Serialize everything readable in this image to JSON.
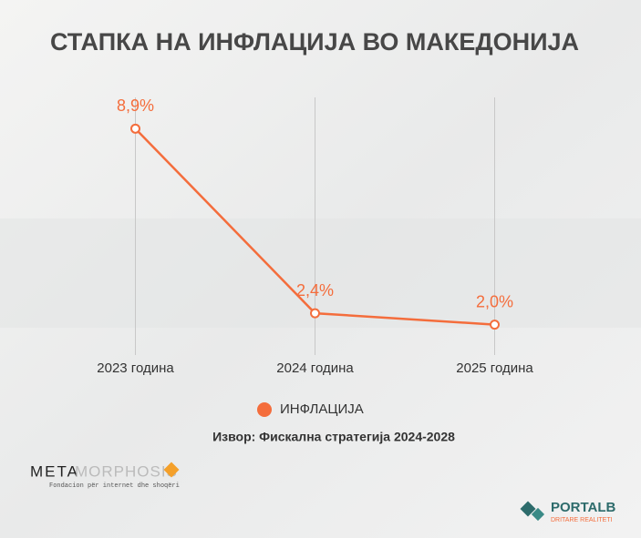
{
  "chart_data": {
    "type": "line",
    "title": "СТАПКА НА ИНФЛАЦИЈА ВО МАКЕДОНИЈА",
    "categories": [
      "2023 година",
      "2024 година",
      "2025 година"
    ],
    "series": [
      {
        "name": "ИНФЛАЦИЈА",
        "color": "#f46d3c",
        "values": [
          8.9,
          2.4,
          2.0
        ],
        "value_labels": [
          "8,9%",
          "2,4%",
          "2,0%"
        ]
      }
    ],
    "ylim": [
      0,
      10
    ],
    "source": "Извор: Фискална стратегија 2024-2028"
  },
  "logos": {
    "left": {
      "word1": "META",
      "word2": "MORPHOSIS",
      "tagline": "Fondacion për internet dhe shoqëri"
    },
    "right": {
      "name": "PORTALB",
      "tagline": "DRITARE REALITETI"
    }
  }
}
